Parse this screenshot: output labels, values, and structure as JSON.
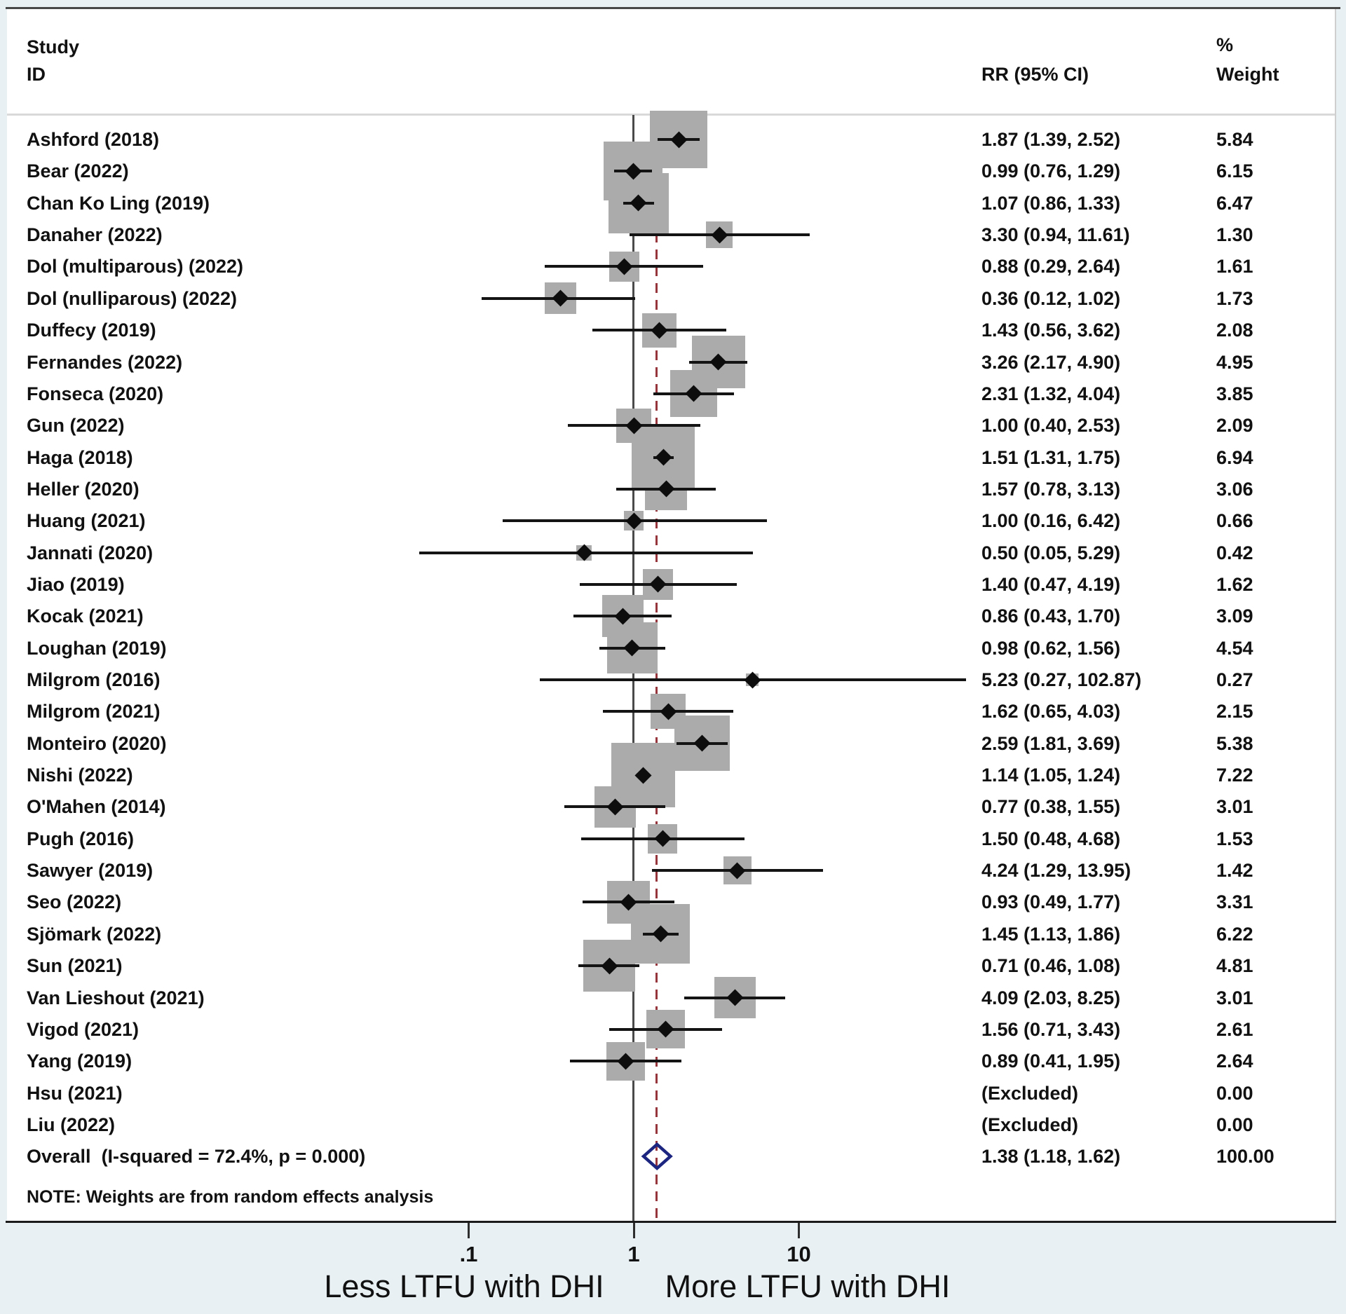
{
  "header": {
    "study_col_line1": "Study",
    "study_col_line2": "ID",
    "rr_col": "RR (95% CI)",
    "weight_col_line1": "%",
    "weight_col_line2": "Weight"
  },
  "note": "NOTE: Weights are from random effects analysis",
  "axis": {
    "scale": "log",
    "ticks": [
      {
        "label": ".1",
        "value": 0.1
      },
      {
        "label": "1",
        "value": 1
      },
      {
        "label": "10",
        "value": 10
      }
    ],
    "null_line_value": 1,
    "overall_dashed_value": 1.38,
    "left_direction_label": "Less LTFU with DHI",
    "right_direction_label": "More LTFU with DHI"
  },
  "colors": {
    "outer_background": "#e9f0f4",
    "panel": "#ffffff",
    "weight_box": "#ababab",
    "ci_line": "#141414",
    "point_marker": "#0d0d0d",
    "null_line": "#4a4a4a",
    "dashed_overall_line": "#96353b",
    "overall_diamond": "#1c2680",
    "text": "#111111"
  },
  "chart_data": {
    "type": "forest",
    "effect_measure": "RR",
    "x_ticks": [
      0.1,
      1,
      10
    ],
    "studies": [
      {
        "id": "Ashford (2018)",
        "rr": 1.87,
        "lo": 1.39,
        "hi": 2.52,
        "weight": 5.84,
        "rr_text": "1.87 (1.39, 2.52)",
        "weight_text": "5.84"
      },
      {
        "id": "Bear (2022)",
        "rr": 0.99,
        "lo": 0.76,
        "hi": 1.29,
        "weight": 6.15,
        "rr_text": "0.99 (0.76, 1.29)",
        "weight_text": "6.15"
      },
      {
        "id": "Chan Ko Ling (2019)",
        "rr": 1.07,
        "lo": 0.86,
        "hi": 1.33,
        "weight": 6.47,
        "rr_text": "1.07 (0.86, 1.33)",
        "weight_text": "6.47"
      },
      {
        "id": "Danaher (2022)",
        "rr": 3.3,
        "lo": 0.94,
        "hi": 11.61,
        "weight": 1.3,
        "rr_text": "3.30 (0.94, 11.61)",
        "weight_text": "1.30"
      },
      {
        "id": "Dol (multiparous) (2022)",
        "rr": 0.88,
        "lo": 0.29,
        "hi": 2.64,
        "weight": 1.61,
        "rr_text": "0.88 (0.29, 2.64)",
        "weight_text": "1.61"
      },
      {
        "id": "Dol (nulliparous) (2022)",
        "rr": 0.36,
        "lo": 0.12,
        "hi": 1.02,
        "weight": 1.73,
        "rr_text": "0.36 (0.12, 1.02)",
        "weight_text": "1.73"
      },
      {
        "id": "Duffecy (2019)",
        "rr": 1.43,
        "lo": 0.56,
        "hi": 3.62,
        "weight": 2.08,
        "rr_text": "1.43 (0.56, 3.62)",
        "weight_text": "2.08"
      },
      {
        "id": "Fernandes (2022)",
        "rr": 3.26,
        "lo": 2.17,
        "hi": 4.9,
        "weight": 4.95,
        "rr_text": "3.26 (2.17, 4.90)",
        "weight_text": "4.95"
      },
      {
        "id": "Fonseca (2020)",
        "rr": 2.31,
        "lo": 1.32,
        "hi": 4.04,
        "weight": 3.85,
        "rr_text": "2.31 (1.32, 4.04)",
        "weight_text": "3.85"
      },
      {
        "id": "Gun (2022)",
        "rr": 1.0,
        "lo": 0.4,
        "hi": 2.53,
        "weight": 2.09,
        "rr_text": "1.00 (0.40, 2.53)",
        "weight_text": "2.09"
      },
      {
        "id": "Haga (2018)",
        "rr": 1.51,
        "lo": 1.31,
        "hi": 1.75,
        "weight": 6.94,
        "rr_text": "1.51 (1.31, 1.75)",
        "weight_text": "6.94"
      },
      {
        "id": "Heller (2020)",
        "rr": 1.57,
        "lo": 0.78,
        "hi": 3.13,
        "weight": 3.06,
        "rr_text": "1.57 (0.78, 3.13)",
        "weight_text": "3.06"
      },
      {
        "id": "Huang (2021)",
        "rr": 1.0,
        "lo": 0.16,
        "hi": 6.42,
        "weight": 0.66,
        "rr_text": "1.00 (0.16, 6.42)",
        "weight_text": "0.66"
      },
      {
        "id": "Jannati (2020)",
        "rr": 0.5,
        "lo": 0.05,
        "hi": 5.29,
        "weight": 0.42,
        "rr_text": "0.50 (0.05, 5.29)",
        "weight_text": "0.42"
      },
      {
        "id": "Jiao (2019)",
        "rr": 1.4,
        "lo": 0.47,
        "hi": 4.19,
        "weight": 1.62,
        "rr_text": "1.40 (0.47, 4.19)",
        "weight_text": "1.62"
      },
      {
        "id": "Kocak (2021)",
        "rr": 0.86,
        "lo": 0.43,
        "hi": 1.7,
        "weight": 3.09,
        "rr_text": "0.86 (0.43, 1.70)",
        "weight_text": "3.09"
      },
      {
        "id": "Loughan (2019)",
        "rr": 0.98,
        "lo": 0.62,
        "hi": 1.56,
        "weight": 4.54,
        "rr_text": "0.98 (0.62, 1.56)",
        "weight_text": "4.54"
      },
      {
        "id": "Milgrom (2016)",
        "rr": 5.23,
        "lo": 0.27,
        "hi": 102.87,
        "weight": 0.27,
        "rr_text": "5.23 (0.27, 102.87)",
        "weight_text": "0.27"
      },
      {
        "id": "Milgrom (2021)",
        "rr": 1.62,
        "lo": 0.65,
        "hi": 4.03,
        "weight": 2.15,
        "rr_text": "1.62 (0.65, 4.03)",
        "weight_text": "2.15"
      },
      {
        "id": "Monteiro (2020)",
        "rr": 2.59,
        "lo": 1.81,
        "hi": 3.69,
        "weight": 5.38,
        "rr_text": "2.59 (1.81, 3.69)",
        "weight_text": "5.38"
      },
      {
        "id": "Nishi (2022)",
        "rr": 1.14,
        "lo": 1.05,
        "hi": 1.24,
        "weight": 7.22,
        "rr_text": "1.14 (1.05, 1.24)",
        "weight_text": "7.22"
      },
      {
        "id": "O'Mahen (2014)",
        "rr": 0.77,
        "lo": 0.38,
        "hi": 1.55,
        "weight": 3.01,
        "rr_text": "0.77 (0.38, 1.55)",
        "weight_text": "3.01"
      },
      {
        "id": "Pugh (2016)",
        "rr": 1.5,
        "lo": 0.48,
        "hi": 4.68,
        "weight": 1.53,
        "rr_text": "1.50 (0.48, 4.68)",
        "weight_text": "1.53"
      },
      {
        "id": "Sawyer (2019)",
        "rr": 4.24,
        "lo": 1.29,
        "hi": 13.95,
        "weight": 1.42,
        "rr_text": "4.24 (1.29, 13.95)",
        "weight_text": "1.42"
      },
      {
        "id": "Seo (2022)",
        "rr": 0.93,
        "lo": 0.49,
        "hi": 1.77,
        "weight": 3.31,
        "rr_text": "0.93 (0.49, 1.77)",
        "weight_text": "3.31"
      },
      {
        "id": "Sjömark (2022)",
        "rr": 1.45,
        "lo": 1.13,
        "hi": 1.86,
        "weight": 6.22,
        "rr_text": "1.45 (1.13, 1.86)",
        "weight_text": "6.22"
      },
      {
        "id": "Sun (2021)",
        "rr": 0.71,
        "lo": 0.46,
        "hi": 1.08,
        "weight": 4.81,
        "rr_text": "0.71 (0.46, 1.08)",
        "weight_text": "4.81"
      },
      {
        "id": "Van Lieshout (2021)",
        "rr": 4.09,
        "lo": 2.03,
        "hi": 8.25,
        "weight": 3.01,
        "rr_text": "4.09 (2.03, 8.25)",
        "weight_text": "3.01"
      },
      {
        "id": "Vigod (2021)",
        "rr": 1.56,
        "lo": 0.71,
        "hi": 3.43,
        "weight": 2.61,
        "rr_text": "1.56 (0.71, 3.43)",
        "weight_text": "2.61"
      },
      {
        "id": "Yang (2019)",
        "rr": 0.89,
        "lo": 0.41,
        "hi": 1.95,
        "weight": 2.64,
        "rr_text": "0.89 (0.41, 1.95)",
        "weight_text": "2.64"
      },
      {
        "id": "Hsu (2021)",
        "excluded": true,
        "rr_text": "(Excluded)",
        "weight_text": "0.00"
      },
      {
        "id": "Liu (2022)",
        "excluded": true,
        "rr_text": "(Excluded)",
        "weight_text": "0.00"
      }
    ],
    "overall": {
      "id": "Overall  (I-squared = 72.4%, p = 0.000)",
      "rr": 1.38,
      "lo": 1.18,
      "hi": 1.62,
      "rr_text": "1.38 (1.18, 1.62)",
      "weight_text": "100.00",
      "i_squared": "72.4%",
      "p_value": "0.000"
    }
  }
}
